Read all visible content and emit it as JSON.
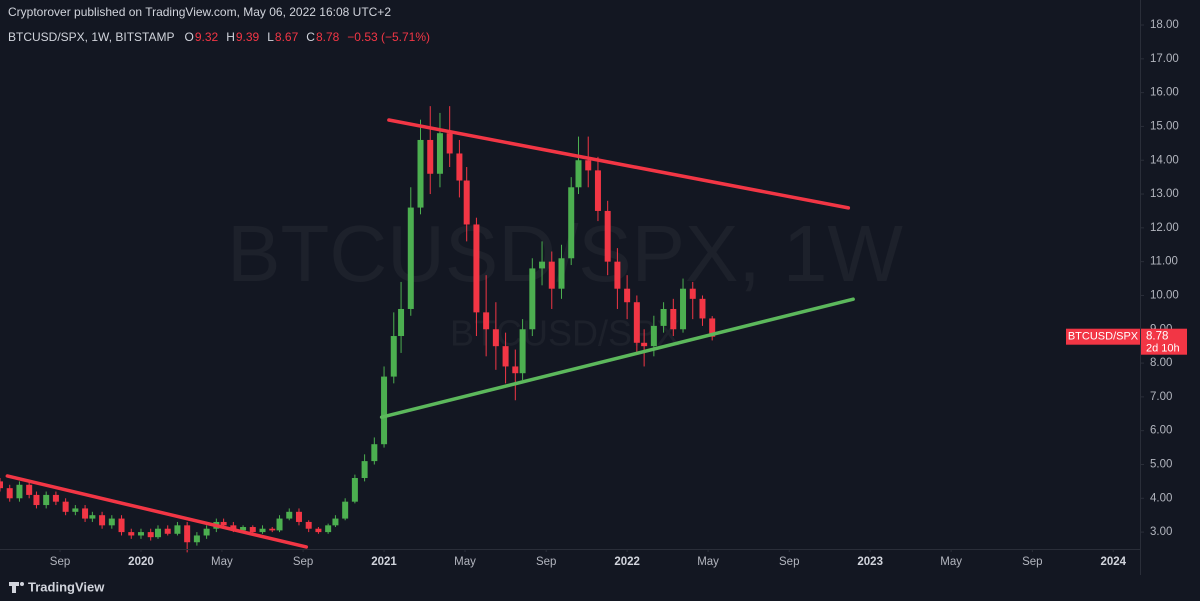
{
  "header": {
    "published": "Cryptorover published on TradingView.com, May 06, 2022 16:08 UTC+2",
    "symbol": "BTCUSD/SPX, 1W, BITSTAMP",
    "ohlc_prefixes": [
      "O",
      "H",
      "L",
      "C"
    ],
    "change": "−0.53 (−5.71%)"
  },
  "watermark": {
    "main": "BTCUSD/SPX, 1W",
    "sub": "BTCUSD/SPX"
  },
  "price_tag": {
    "name": "BTCUSD/SPX",
    "countdown": "2d 10h"
  },
  "footer": {
    "brand": "TradingView"
  },
  "chart_data": {
    "type": "candlestick",
    "x": [
      2019.42,
      2019.46,
      2019.5,
      2019.54,
      2019.57,
      2019.61,
      2019.65,
      2019.69,
      2019.73,
      2019.77,
      2019.8,
      2019.84,
      2019.88,
      2019.92,
      2019.96,
      2020.0,
      2020.04,
      2020.07,
      2020.11,
      2020.15,
      2020.19,
      2020.23,
      2020.27,
      2020.31,
      2020.34,
      2020.38,
      2020.42,
      2020.46,
      2020.5,
      2020.54,
      2020.57,
      2020.61,
      2020.65,
      2020.69,
      2020.73,
      2020.77,
      2020.8,
      2020.84,
      2020.88,
      2020.92,
      2020.96,
      2021.0,
      2021.04,
      2021.07,
      2021.11,
      2021.15,
      2021.19,
      2021.23,
      2021.27,
      2021.31,
      2021.34,
      2021.38,
      2021.42,
      2021.46,
      2021.5,
      2021.54,
      2021.57,
      2021.61,
      2021.65,
      2021.69,
      2021.73,
      2021.77,
      2021.8,
      2021.84,
      2021.88,
      2021.92,
      2021.96,
      2022.0,
      2022.04,
      2022.07,
      2022.11,
      2022.15,
      2022.19,
      2022.23,
      2022.27,
      2022.31,
      2022.35
    ],
    "open": [
      4.5,
      4.3,
      4.0,
      4.4,
      4.1,
      3.8,
      4.1,
      3.9,
      3.6,
      3.7,
      3.4,
      3.5,
      3.2,
      3.4,
      3.0,
      2.9,
      3.0,
      2.85,
      3.1,
      2.95,
      3.2,
      2.7,
      2.9,
      3.1,
      3.3,
      3.2,
      3.05,
      3.15,
      3.0,
      3.1,
      3.05,
      3.4,
      3.6,
      3.3,
      3.1,
      3.0,
      3.2,
      3.4,
      3.9,
      4.6,
      5.1,
      5.6,
      7.6,
      8.8,
      9.6,
      12.6,
      14.6,
      13.6,
      14.8,
      14.2,
      13.4,
      12.1,
      9.5,
      9.0,
      8.5,
      7.9,
      7.7,
      9.0,
      10.8,
      11.0,
      10.2,
      11.1,
      13.2,
      14.0,
      13.7,
      12.5,
      11.0,
      10.2,
      9.8,
      8.6,
      8.5,
      9.1,
      9.6,
      9.0,
      10.2,
      9.9,
      9.32
    ],
    "high": [
      4.6,
      4.4,
      4.5,
      4.5,
      4.2,
      4.2,
      4.2,
      4.0,
      3.8,
      3.8,
      3.6,
      3.6,
      3.5,
      3.5,
      3.1,
      3.1,
      3.1,
      3.2,
      3.2,
      3.3,
      3.3,
      3.0,
      3.2,
      3.4,
      3.4,
      3.3,
      3.2,
      3.2,
      3.2,
      3.15,
      3.5,
      3.7,
      3.7,
      3.35,
      3.15,
      3.25,
      3.5,
      4.0,
      4.7,
      5.3,
      5.8,
      7.9,
      9.5,
      10.4,
      13.2,
      15.2,
      15.6,
      15.4,
      15.6,
      14.6,
      13.8,
      12.3,
      10.6,
      9.8,
      8.9,
      8.4,
      9.3,
      11.1,
      11.6,
      11.3,
      11.5,
      13.5,
      14.7,
      14.7,
      14.1,
      12.8,
      11.4,
      10.6,
      10.0,
      9.0,
      9.4,
      9.8,
      9.9,
      10.5,
      10.4,
      10.0,
      9.39
    ],
    "low": [
      4.2,
      3.9,
      3.9,
      4.0,
      3.7,
      3.7,
      3.8,
      3.5,
      3.5,
      3.3,
      3.3,
      3.1,
      3.1,
      2.9,
      2.8,
      2.8,
      2.75,
      2.8,
      2.9,
      2.9,
      2.4,
      2.6,
      2.8,
      3.0,
      3.1,
      3.0,
      3.0,
      2.95,
      2.95,
      3.0,
      3.0,
      3.35,
      3.2,
      3.0,
      2.95,
      2.95,
      3.15,
      3.35,
      3.85,
      4.5,
      5.0,
      5.5,
      7.4,
      8.3,
      9.4,
      12.4,
      13.0,
      13.2,
      13.8,
      12.9,
      11.6,
      8.8,
      8.2,
      7.8,
      7.4,
      6.9,
      7.5,
      8.8,
      10.3,
      9.6,
      9.9,
      10.9,
      13.0,
      13.2,
      12.2,
      10.6,
      9.6,
      9.3,
      8.3,
      7.9,
      8.2,
      8.9,
      8.8,
      8.9,
      9.3,
      9.1,
      8.67
    ],
    "close": [
      4.3,
      4.0,
      4.4,
      4.1,
      3.8,
      4.1,
      3.9,
      3.6,
      3.7,
      3.4,
      3.5,
      3.2,
      3.4,
      3.0,
      2.9,
      3.0,
      2.85,
      3.1,
      2.95,
      3.2,
      2.7,
      2.9,
      3.1,
      3.3,
      3.2,
      3.05,
      3.15,
      3.0,
      3.1,
      3.05,
      3.4,
      3.6,
      3.3,
      3.1,
      3.0,
      3.2,
      3.4,
      3.9,
      4.6,
      5.1,
      5.6,
      7.6,
      8.8,
      9.6,
      12.6,
      14.6,
      13.6,
      14.8,
      14.2,
      13.4,
      12.1,
      9.5,
      9.0,
      8.5,
      7.9,
      7.7,
      9.0,
      10.8,
      11.0,
      10.2,
      11.1,
      13.2,
      14.0,
      13.7,
      12.5,
      11.0,
      10.2,
      9.8,
      8.6,
      8.5,
      9.1,
      9.6,
      9.0,
      10.2,
      9.9,
      9.32,
      8.78
    ],
    "up_color": "#4caf50",
    "down_color": "#f23645",
    "xlim": [
      2019.42,
      2024.11
    ],
    "ylim": [
      2.5,
      18.74
    ],
    "xticks": [
      {
        "value": 2019.667,
        "label": "Sep"
      },
      2020,
      {
        "value": 2020.333,
        "label": "May"
      },
      {
        "value": 2020.667,
        "label": "Sep"
      },
      2021,
      {
        "value": 2021.333,
        "label": "May"
      },
      {
        "value": 2021.667,
        "label": "Sep"
      },
      2022,
      {
        "value": 2022.333,
        "label": "May"
      },
      {
        "value": 2022.667,
        "label": "Sep"
      },
      2023,
      {
        "value": 2023.333,
        "label": "May"
      },
      {
        "value": 2023.667,
        "label": "Sep"
      },
      2024
    ],
    "yticks": [
      {
        "value": 3,
        "label": "3.00"
      },
      {
        "value": 4,
        "label": "4.00"
      },
      {
        "value": 5,
        "label": "5.00"
      },
      {
        "value": 6,
        "label": "6.00"
      },
      {
        "value": 7,
        "label": "7.00"
      },
      {
        "value": 8,
        "label": "8.00"
      },
      {
        "value": 9,
        "label": "9.00"
      },
      {
        "value": 10,
        "label": "10.00"
      },
      {
        "value": 11,
        "label": "11.00"
      },
      {
        "value": 12,
        "label": "12.00"
      },
      {
        "value": 13,
        "label": "13.00"
      },
      {
        "value": 14,
        "label": "14.00"
      },
      {
        "value": 15,
        "label": "15.00"
      },
      {
        "value": 16,
        "label": "16.00"
      },
      {
        "value": 17,
        "label": "17.00"
      },
      {
        "value": 18,
        "label": "18.00"
      }
    ],
    "grid": false,
    "trendlines": [
      {
        "color": "#f23645",
        "x": [
          2021.02,
          2022.91
        ],
        "y": [
          15.19,
          12.59
        ]
      },
      {
        "color": "#5cb85c",
        "x": [
          2020.99,
          2022.93
        ],
        "y": [
          6.4,
          9.89
        ]
      },
      {
        "color": "#f23645",
        "x": [
          2019.45,
          2020.68
        ],
        "y": [
          4.66,
          2.56
        ]
      }
    ]
  }
}
